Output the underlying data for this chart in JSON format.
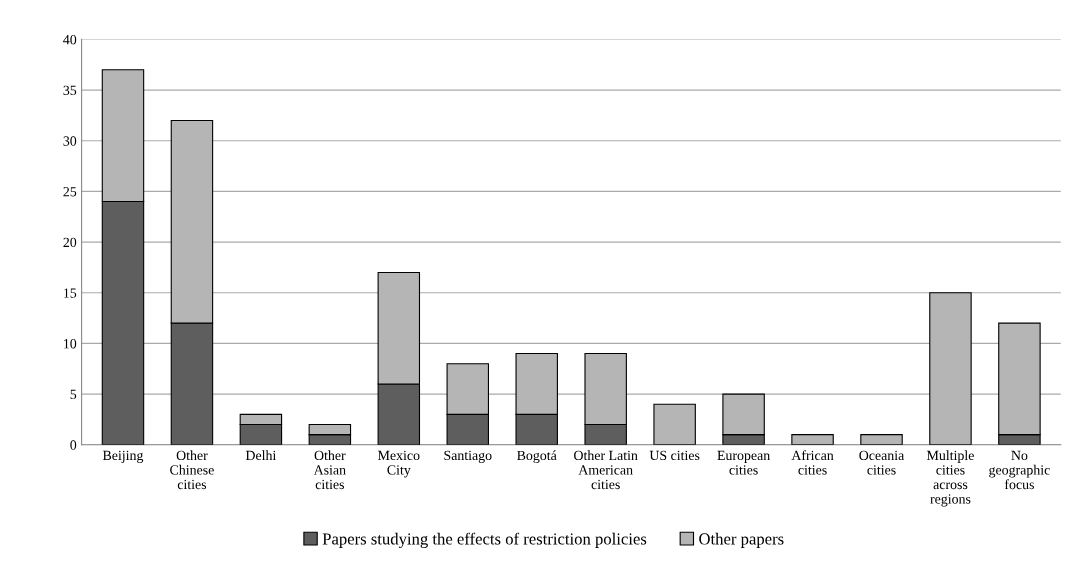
{
  "chart_data": {
    "type": "bar",
    "stacked": true,
    "categories": [
      "Beijing",
      "Other\nChinese\ncities",
      "Delhi",
      "Other\nAsian\ncities",
      "Mexico\nCity",
      "Santiago",
      "Bogotá",
      "Other Latin\nAmerican\ncities",
      "US cities",
      "European\ncities",
      "African\ncities",
      "Oceania\ncities",
      "Multiple\ncities\nacross\nregions",
      "No\ngeographic\nfocus"
    ],
    "series": [
      {
        "name": "Papers studying the effects of restriction policies",
        "color": "#5e5e5e",
        "values": [
          24,
          12,
          2,
          1,
          6,
          3,
          3,
          2,
          0,
          1,
          0,
          0,
          0,
          1
        ]
      },
      {
        "name": "Other papers",
        "color": "#b5b5b5",
        "values": [
          13,
          20,
          1,
          1,
          11,
          5,
          6,
          7,
          4,
          4,
          1,
          1,
          15,
          11
        ]
      }
    ],
    "ylim": [
      0,
      40
    ],
    "yticks": [
      0,
      5,
      10,
      15,
      20,
      25,
      30,
      35,
      40
    ],
    "grid": "y",
    "legend": "bottom"
  }
}
